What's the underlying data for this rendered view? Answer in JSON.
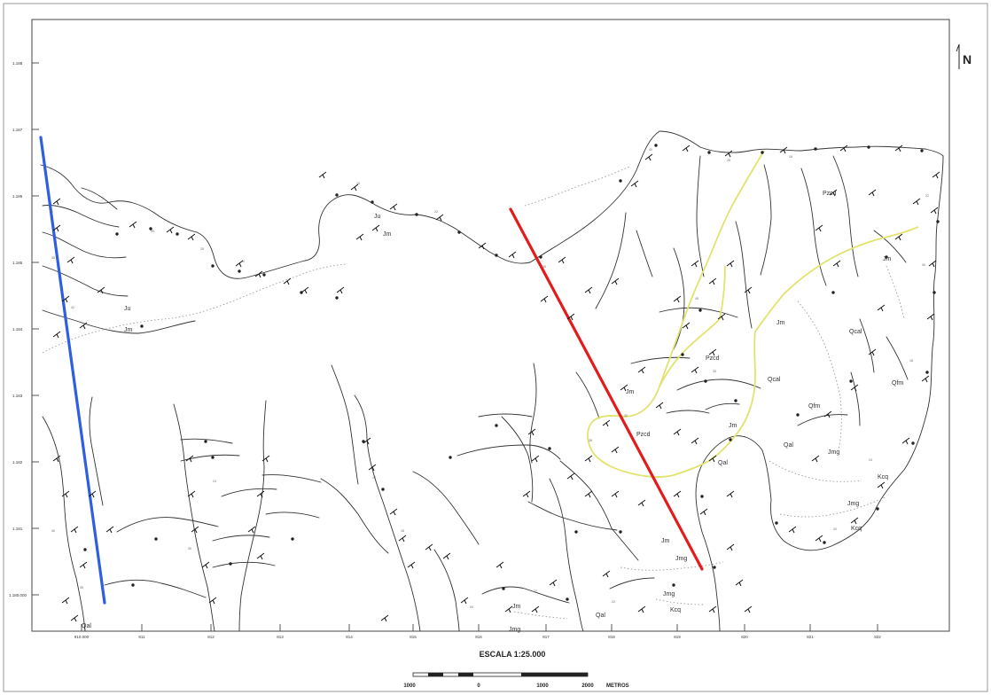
{
  "map": {
    "north_label": "N",
    "scale_title": "ESCALA 1:25.000",
    "scale_bar": {
      "labels": [
        "1000",
        "0",
        "1000",
        "2000"
      ],
      "unit": "METROS"
    },
    "geology_labels": [
      "Ju",
      "Jm",
      "Ju",
      "Jm",
      "Pzcd",
      "Jm",
      "Pzcd",
      "Jm",
      "Qcal",
      "Jm",
      "Pzcd",
      "Qcal",
      "Qfm",
      "Qfm",
      "Jm",
      "Qal",
      "Jmg",
      "Qal",
      "Kcq",
      "Jmg",
      "Kcq",
      "Jm",
      "Jmg",
      "Jmg",
      "Kcq",
      "Jm",
      "Qal",
      "Jmg",
      "Qal"
    ],
    "bottom_ticks": [
      "810.000",
      "811",
      "812",
      "813",
      "814",
      "815",
      "816",
      "817",
      "818",
      "819",
      "820",
      "821",
      "822"
    ],
    "left_ticks": [
      "1.188",
      "1.187",
      "1.186",
      "1.185",
      "1.184",
      "1.183",
      "1.182",
      "1.181",
      "1.180.000"
    ],
    "colors": {
      "section_blue": "#2f5fe0",
      "section_red": "#e31b1b",
      "contact_yellow": "#e2e36e",
      "linework": "#333333"
    }
  }
}
